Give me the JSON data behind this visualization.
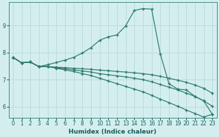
{
  "title": "",
  "xlabel": "Humidex (Indice chaleur)",
  "ylabel": "",
  "bg_color": "#d4eeee",
  "line_color": "#2e7b6e",
  "grid_color": "#b8d8d8",
  "xlim": [
    -0.5,
    23.5
  ],
  "ylim": [
    5.6,
    9.85
  ],
  "yticks": [
    6,
    7,
    8,
    9
  ],
  "xticks": [
    0,
    1,
    2,
    3,
    4,
    5,
    6,
    7,
    8,
    9,
    10,
    11,
    12,
    13,
    14,
    15,
    16,
    17,
    18,
    19,
    20,
    21,
    22,
    23
  ],
  "series": [
    {
      "x": [
        0,
        1,
        2,
        3,
        4,
        5,
        6,
        7,
        8,
        9,
        10,
        11,
        12,
        13,
        14,
        15,
        16,
        17,
        18,
        19,
        20,
        21,
        22,
        23
      ],
      "y": [
        7.82,
        7.62,
        7.65,
        7.48,
        7.55,
        7.63,
        7.72,
        7.82,
        7.98,
        8.18,
        8.45,
        8.58,
        8.65,
        8.98,
        9.55,
        9.62,
        9.6,
        7.95,
        6.85,
        6.65,
        6.62,
        6.38,
        6.22,
        5.72
      ]
    },
    {
      "x": [
        0,
        1,
        2,
        3,
        4,
        5,
        6,
        7,
        8,
        9,
        10,
        11,
        12,
        13,
        14,
        15,
        16,
        17,
        18,
        19,
        20,
        21,
        22,
        23
      ],
      "y": [
        7.82,
        7.62,
        7.65,
        7.48,
        7.48,
        7.46,
        7.44,
        7.42,
        7.4,
        7.38,
        7.35,
        7.33,
        7.3,
        7.28,
        7.25,
        7.22,
        7.18,
        7.12,
        7.05,
        6.98,
        6.9,
        6.8,
        6.68,
        6.5
      ]
    },
    {
      "x": [
        0,
        1,
        2,
        3,
        4,
        5,
        6,
        7,
        8,
        9,
        10,
        11,
        12,
        13,
        14,
        15,
        16,
        17,
        18,
        19,
        20,
        21,
        22,
        23
      ],
      "y": [
        7.82,
        7.62,
        7.65,
        7.48,
        7.48,
        7.44,
        7.4,
        7.36,
        7.32,
        7.28,
        7.22,
        7.18,
        7.14,
        7.1,
        7.05,
        7.0,
        6.92,
        6.82,
        6.72,
        6.62,
        6.5,
        6.38,
        6.22,
        6.02
      ]
    },
    {
      "x": [
        0,
        1,
        2,
        3,
        4,
        5,
        6,
        7,
        8,
        9,
        10,
        11,
        12,
        13,
        14,
        15,
        16,
        17,
        18,
        19,
        20,
        21,
        22,
        23
      ],
      "y": [
        7.82,
        7.62,
        7.65,
        7.48,
        7.48,
        7.42,
        7.36,
        7.3,
        7.22,
        7.15,
        7.05,
        6.95,
        6.85,
        6.75,
        6.65,
        6.55,
        6.42,
        6.28,
        6.15,
        6.02,
        5.88,
        5.75,
        5.62,
        5.72
      ]
    }
  ]
}
